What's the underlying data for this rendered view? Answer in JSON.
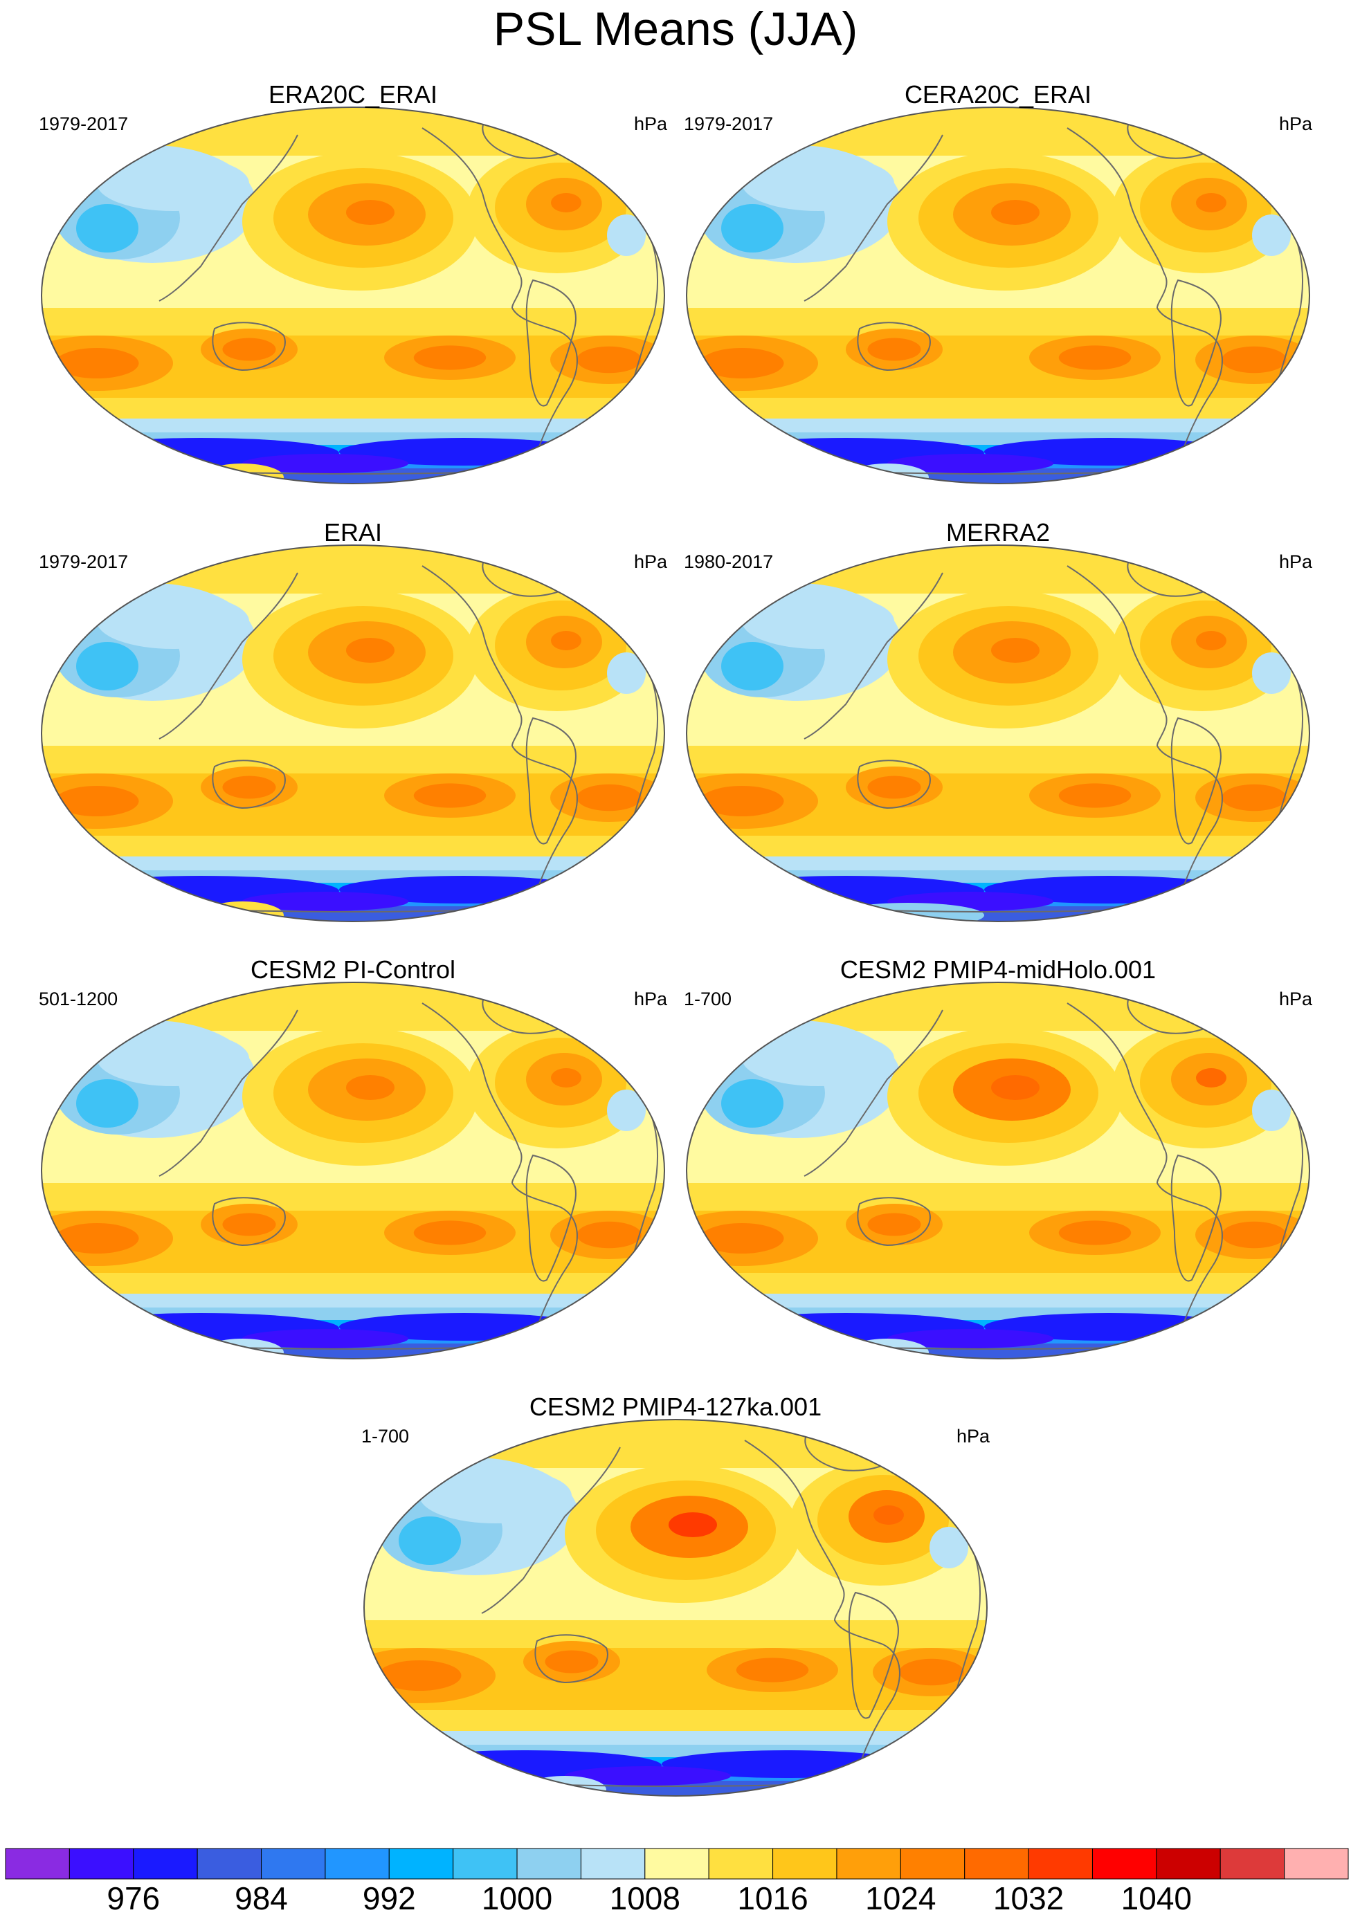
{
  "title": "PSL Means (JJA)",
  "panels": [
    {
      "title": "ERA20C_ERAI",
      "period": "1979-2017",
      "units": "hPa",
      "variant": 0
    },
    {
      "title": "CERA20C_ERAI",
      "period": "1979-2017",
      "units": "hPa",
      "variant": 1
    },
    {
      "title": "ERAI",
      "period": "1979-2017",
      "units": "hPa",
      "variant": 0
    },
    {
      "title": "MERRA2",
      "period": "1980-2017",
      "units": "hPa",
      "variant": 2
    },
    {
      "title": "CESM2 PI-Control",
      "period": "501-1200",
      "units": "hPa",
      "variant": 3
    },
    {
      "title": "CESM2 PMIP4-midHolo.001",
      "period": "1-700",
      "units": "hPa",
      "variant": 4
    },
    {
      "title": "CESM2 PMIP4-127ka.001",
      "period": "1-700",
      "units": "hPa",
      "variant": 5
    }
  ],
  "colorbar": {
    "colors": [
      "#8a2be2",
      "#3b0fff",
      "#1a1aff",
      "#3a5de0",
      "#2f78f0",
      "#2196ff",
      "#00b3ff",
      "#3fc2f5",
      "#8ed0f0",
      "#b8e2f7",
      "#fffaa0",
      "#ffe040",
      "#ffc61a",
      "#ff9f0a",
      "#ff8000",
      "#ff6a00",
      "#ff3a00",
      "#ff0000",
      "#cc0000",
      "#dd3a3a",
      "#ffb0b0"
    ],
    "tick_labels": [
      "976",
      "984",
      "992",
      "1000",
      "1008",
      "1016",
      "1024",
      "1032",
      "1040"
    ]
  }
}
